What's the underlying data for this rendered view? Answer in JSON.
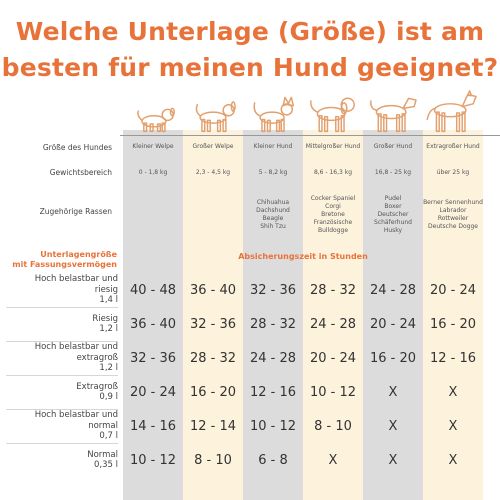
{
  "title": {
    "line1": "Welche Unterlage (Größe) ist am",
    "line2": "besten für meinen Hund geeignet?"
  },
  "colors": {
    "accent": "#e8733a",
    "col_grey": "#dcdcdc",
    "col_cream": "#fdf2dc",
    "dog": "#e3a06e"
  },
  "labels": {
    "size": "Größe des Hundes",
    "weight": "Gewichtsbereich",
    "breeds": "Zugehörige Rassen",
    "pad_size_line1": "Unterlagengröße",
    "pad_size_line2": "mit Fassungsvermögen",
    "time_header": "Absicherungszeit in Stunden"
  },
  "dogs": [
    {
      "size": "Kleiner Welpe",
      "weight": "0 - 1,8 kg",
      "breeds": [],
      "icon": "puppy-small-icon"
    },
    {
      "size": "Großer Welpe",
      "weight": "2,3 - 4,5 kg",
      "breeds": [],
      "icon": "puppy-large-icon"
    },
    {
      "size": "Kleiner Hund",
      "weight": "5 - 8,2 kg",
      "breeds": [
        "Chihuahua",
        "Dachshund",
        "Beagle",
        "Shih Tzu"
      ],
      "icon": "small-dog-icon"
    },
    {
      "size": "Mittelgroßer Hund",
      "weight": "8,6 - 16,3 kg",
      "breeds": [
        "Cocker Spaniel",
        "Corgi",
        "Bretone",
        "Französische",
        "Bulldogge"
      ],
      "icon": "medium-dog-icon"
    },
    {
      "size": "Großer Hund",
      "weight": "16,8 - 25 kg",
      "breeds": [
        "Pudel",
        "Boxer",
        "Deutscher",
        "Schäferhund",
        "Husky"
      ],
      "icon": "large-dog-icon"
    },
    {
      "size": "Extragroßer Hund",
      "weight": "über 25 kg",
      "breeds": [
        "Berner Sennenhund",
        "Labrador",
        "Rottweiler",
        "Deutsche Dogge"
      ],
      "icon": "extra-large-dog-icon"
    }
  ],
  "rows": [
    {
      "label": [
        "Hoch belastbar und",
        "riesig",
        "1,4 l"
      ],
      "values": [
        "40 - 48",
        "36 - 40",
        "32 - 36",
        "28 - 32",
        "24 - 28",
        "20 - 24"
      ]
    },
    {
      "label": [
        "Riesig",
        "1,2 l"
      ],
      "values": [
        "36 - 40",
        "32 - 36",
        "28 - 32",
        "24 - 28",
        "20 - 24",
        "16 - 20"
      ]
    },
    {
      "label": [
        "Hoch belastbar und",
        "extragroß",
        "1,2 l"
      ],
      "values": [
        "32 - 36",
        "28 - 32",
        "24 - 28",
        "20 - 24",
        "16 - 20",
        "12 - 16"
      ]
    },
    {
      "label": [
        "Extragroß",
        "0,9 l"
      ],
      "values": [
        "20 - 24",
        "16 - 20",
        "12 - 16",
        "10 - 12",
        "X",
        "X"
      ]
    },
    {
      "label": [
        "Hoch belastbar und",
        "normal",
        "0,7 l"
      ],
      "values": [
        "14 - 16",
        "12 - 14",
        "10 - 12",
        "8 - 10",
        "X",
        "X"
      ]
    },
    {
      "label": [
        "Normal",
        "0,35 l"
      ],
      "values": [
        "10 - 12",
        "8 - 10",
        "6 - 8",
        "X",
        "X",
        "X"
      ]
    }
  ]
}
